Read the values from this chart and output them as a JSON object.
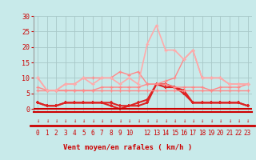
{
  "bg_color": "#c8eaea",
  "grid_color": "#a8c8c8",
  "line_color_dark": "#cc0000",
  "line_color_light": "#ff9999",
  "xlabel": "Vent moyen/en rafales ( km/h )",
  "xlabel_color": "#cc0000",
  "tick_color": "#cc0000",
  "ylim": [
    -1,
    30
  ],
  "yticks": [
    0,
    5,
    10,
    15,
    20,
    25,
    30
  ],
  "x_positions": [
    0,
    1,
    2,
    3,
    4,
    5,
    6,
    7,
    8,
    9,
    10,
    11,
    12,
    13,
    14,
    15,
    16,
    17,
    18,
    19,
    20,
    21,
    22,
    23
  ],
  "x_labels": [
    "0",
    "1",
    "2",
    "3",
    "4",
    "5",
    "6",
    "7",
    "8",
    "9",
    "10",
    "",
    "12",
    "13",
    "14",
    "15",
    "16",
    "17",
    "18",
    "19",
    "20",
    "21",
    "22",
    "23"
  ],
  "series": [
    {
      "color": "#dd2222",
      "lw": 1.5,
      "marker": "+",
      "ms": 3,
      "mew": 1.2,
      "y": [
        2,
        1,
        1,
        2,
        2,
        2,
        2,
        2,
        1,
        0,
        1,
        1,
        2,
        8,
        8,
        7,
        6,
        2,
        2,
        2,
        2,
        2,
        2,
        1
      ]
    },
    {
      "color": "#dd2222",
      "lw": 1.5,
      "marker": "+",
      "ms": 3,
      "mew": 1.2,
      "y": [
        2,
        1,
        1,
        2,
        2,
        2,
        2,
        2,
        2,
        1,
        1,
        2,
        3,
        8,
        7,
        7,
        5,
        2,
        2,
        2,
        2,
        2,
        2,
        1
      ]
    },
    {
      "color": "#ff8888",
      "lw": 1.0,
      "marker": "+",
      "ms": 3,
      "mew": 0.9,
      "y": [
        6,
        6,
        6,
        6,
        6,
        6,
        6,
        6,
        6,
        6,
        6,
        6,
        6,
        6,
        6,
        6,
        6,
        6,
        6,
        6,
        6,
        6,
        6,
        6
      ]
    },
    {
      "color": "#ff8888",
      "lw": 1.0,
      "marker": "+",
      "ms": 3,
      "mew": 0.9,
      "y": [
        7,
        6,
        6,
        6,
        6,
        6,
        6,
        7,
        7,
        7,
        7,
        7,
        8,
        8,
        8,
        7,
        7,
        7,
        7,
        6,
        7,
        7,
        7,
        8
      ]
    },
    {
      "color": "#ff8888",
      "lw": 1.0,
      "marker": "+",
      "ms": 3,
      "mew": 0.9,
      "y": [
        10,
        6,
        6,
        8,
        8,
        10,
        10,
        10,
        10,
        12,
        11,
        12,
        8,
        8,
        9,
        10,
        16,
        19,
        10,
        10,
        10,
        8,
        8,
        8
      ]
    },
    {
      "color": "#ffaaaa",
      "lw": 1.2,
      "marker": "+",
      "ms": 3,
      "mew": 0.9,
      "y": [
        10,
        6,
        6,
        8,
        8,
        10,
        8,
        10,
        10,
        8,
        10,
        8,
        21,
        27,
        19,
        19,
        16,
        19,
        10,
        10,
        10,
        8,
        8,
        8
      ]
    }
  ],
  "figsize": [
    3.2,
    2.0
  ],
  "dpi": 100
}
